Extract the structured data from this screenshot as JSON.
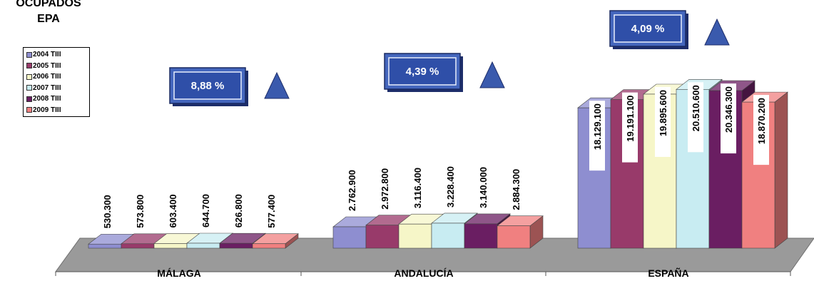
{
  "chart_data": {
    "type": "bar",
    "title": [
      "OCUPADOS",
      "EPA"
    ],
    "categories": [
      "MÁLAGA",
      "ANDALUCÍA",
      "ESPAÑA"
    ],
    "series": [
      {
        "name": "2004 TIII",
        "color": "#8e8ed0",
        "values": [
          530300,
          2762900,
          18129100
        ],
        "labels": [
          "530.300",
          "2.762.900",
          "18.129.100"
        ]
      },
      {
        "name": "2005 TIII",
        "color": "#983a6a",
        "values": [
          573800,
          2972800,
          19191100
        ],
        "labels": [
          "573.800",
          "2.972.800",
          "19.191.100"
        ]
      },
      {
        "name": "2006 TIII",
        "color": "#f6f6c8",
        "values": [
          603400,
          3116400,
          19895600
        ],
        "labels": [
          "603.400",
          "3.116.400",
          "19.895.600"
        ]
      },
      {
        "name": "2007 TIII",
        "color": "#c8ecf2",
        "values": [
          644700,
          3228400,
          20510600
        ],
        "labels": [
          "644.700",
          "3.228.400",
          "20.510.600"
        ]
      },
      {
        "name": "2008 TIII",
        "color": "#6a1e62",
        "values": [
          626800,
          3140000,
          20346300
        ],
        "labels": [
          "626.800",
          "3.140.000",
          "20.346.300"
        ]
      },
      {
        "name": "2009 TIII",
        "color": "#f08080",
        "values": [
          577400,
          2884300,
          18870200
        ],
        "labels": [
          "577.400",
          "2.884.300",
          "18.870.200"
        ]
      }
    ],
    "growth": [
      "8,88 %",
      "4,39 %",
      "4,09 %"
    ],
    "ylim": [
      0,
      21000000
    ],
    "legend": "left"
  }
}
